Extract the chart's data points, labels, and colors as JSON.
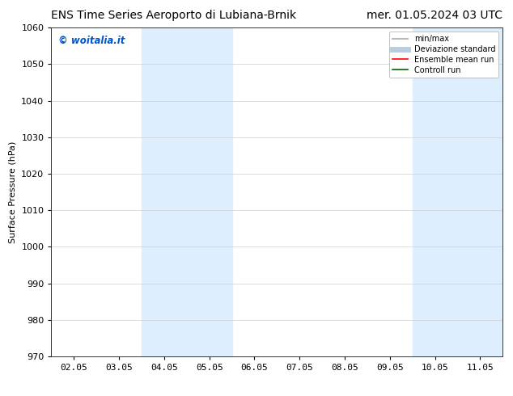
{
  "title_left": "ENS Time Series Aeroporto di Lubiana-Brnik",
  "title_right": "mer. 01.05.2024 03 UTC",
  "ylabel": "Surface Pressure (hPa)",
  "ylim": [
    970,
    1060
  ],
  "yticks": [
    970,
    980,
    990,
    1000,
    1010,
    1020,
    1030,
    1040,
    1050,
    1060
  ],
  "xtick_labels": [
    "02.05",
    "03.05",
    "04.05",
    "05.05",
    "06.05",
    "07.05",
    "08.05",
    "09.05",
    "10.05",
    "11.05"
  ],
  "watermark": "© woitalia.it",
  "watermark_color": "#0055cc",
  "background_color": "#ffffff",
  "plot_bg_color": "#ffffff",
  "shaded_regions": [
    {
      "xstart": 2,
      "xend": 4,
      "color": "#ddeeff"
    },
    {
      "xstart": 8,
      "xend": 10,
      "color": "#ddeeff"
    }
  ],
  "legend_entries": [
    {
      "label": "min/max",
      "color": "#aaaaaa",
      "lw": 1.2,
      "style": "solid"
    },
    {
      "label": "Deviazione standard",
      "color": "#bbccdd",
      "lw": 5,
      "style": "solid"
    },
    {
      "label": "Ensemble mean run",
      "color": "#ff0000",
      "lw": 1.2,
      "style": "solid"
    },
    {
      "label": "Controll run",
      "color": "#006600",
      "lw": 1.2,
      "style": "solid"
    }
  ],
  "title_fontsize": 10,
  "axis_label_fontsize": 8,
  "tick_fontsize": 8,
  "legend_fontsize": 7,
  "grid_color": "#cccccc",
  "grid_alpha": 0.8
}
